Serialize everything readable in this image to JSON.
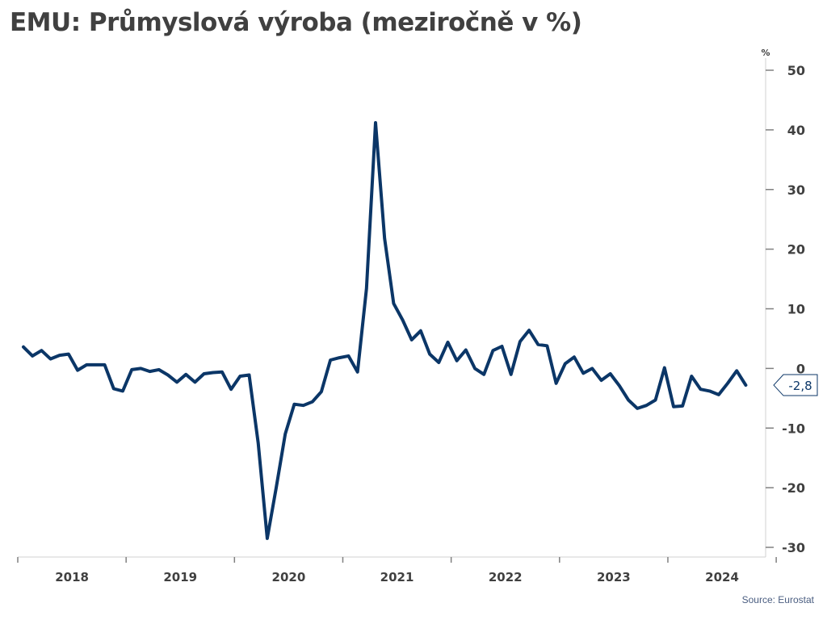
{
  "title": "EMU: Průmyslová výroba (meziročně v %)",
  "source": "Source: Eurostat",
  "colors": {
    "line": "#0b3667",
    "axis": "#d0d0d0",
    "text": "#404040",
    "callout_text": "#0b3667"
  },
  "chart_data": {
    "type": "line",
    "title": "EMU: Průmyslová výroba (meziročně v %)",
    "y_unit_label": "%",
    "ylim": [
      -30,
      50
    ],
    "y_ticks": [
      50,
      40,
      30,
      20,
      10,
      0,
      -10,
      -20,
      -30
    ],
    "y_axis_position": "right",
    "grid": false,
    "x_start": "2018-01",
    "x_end": "2024-08",
    "year_labels": [
      "2018",
      "2019",
      "2020",
      "2021",
      "2022",
      "2023",
      "2024"
    ],
    "series": [
      {
        "values": [
          3.6,
          2.1,
          3.0,
          1.6,
          2.2,
          2.4,
          -0.3,
          0.6,
          0.6,
          0.6,
          -3.4,
          -3.8,
          -0.2,
          0.0,
          -0.5,
          -0.2,
          -1.1,
          -2.3,
          -1.0,
          -2.3,
          -0.9,
          -0.7,
          -0.6,
          -3.5,
          -1.3,
          -1.1,
          -12.5,
          -28.5,
          -20.0,
          -11.0,
          -6.0,
          -6.2,
          -5.6,
          -3.9,
          1.4,
          1.8,
          2.1,
          -0.6,
          13.4,
          41.2,
          21.8,
          10.9,
          8.1,
          4.8,
          6.3,
          2.4,
          1.0,
          4.4,
          1.3,
          3.1,
          0.0,
          -1.0,
          3.0,
          3.7,
          -1.0,
          4.5,
          6.4,
          4.0,
          3.8,
          -2.5,
          0.8,
          1.9,
          -0.8,
          0.0,
          -2.0,
          -0.9,
          -2.9,
          -5.3,
          -6.7,
          -6.2,
          -5.3,
          0.1,
          -6.4,
          -6.3,
          -1.3,
          -3.5,
          -3.8,
          -4.4,
          -2.5,
          -0.4,
          -2.8
        ]
      }
    ],
    "annotations": [
      {
        "label": "-2,8",
        "value": -2.8
      }
    ]
  }
}
